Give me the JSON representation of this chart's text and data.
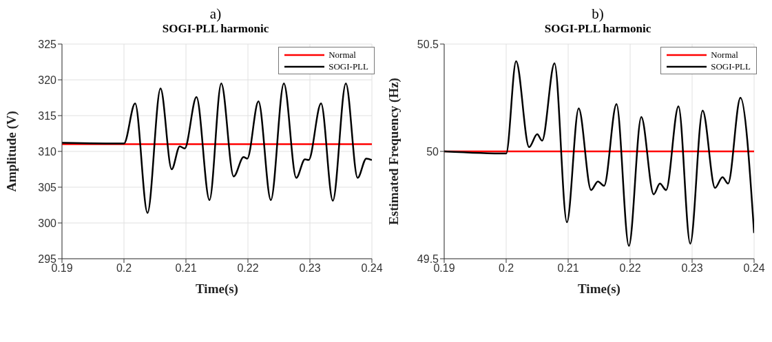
{
  "chart_data": [
    {
      "type": "line",
      "title": "SOGI-PLL harmonic",
      "annotations": [
        "a)"
      ],
      "xlabel": "Time(s)",
      "ylabel": "Amplitude (V)",
      "xlim": [
        0.19,
        0.24
      ],
      "xticks": [
        0.19,
        0.2,
        0.21,
        0.22,
        0.23,
        0.24
      ],
      "ylim": [
        295,
        325
      ],
      "yticks": [
        295,
        300,
        305,
        310,
        315,
        320,
        325
      ],
      "grid": true,
      "legend": "top right",
      "line_style": "solid",
      "series": [
        {
          "name": "Normal",
          "color": "#ff0000",
          "x": [
            0.19,
            0.24
          ],
          "values": [
            311,
            311
          ]
        },
        {
          "name": "SOGI-PLL",
          "color": "#000000",
          "x": [
            0.19,
            0.2,
            0.2018,
            0.2038,
            0.2059,
            0.2077,
            0.209,
            0.2098,
            0.2117,
            0.2138,
            0.2157,
            0.2177,
            0.2193,
            0.2199,
            0.2217,
            0.2237,
            0.2258,
            0.2278,
            0.2292,
            0.2298,
            0.2318,
            0.2337,
            0.2358,
            0.2377,
            0.2391,
            0.24
          ],
          "values": [
            311.2,
            311.1,
            316.7,
            301.4,
            318.8,
            307.5,
            310.7,
            310.4,
            317.6,
            303.2,
            319.5,
            306.5,
            309.2,
            309.0,
            317.0,
            303.2,
            319.5,
            306.3,
            308.9,
            308.8,
            316.7,
            303.1,
            319.5,
            306.3,
            309.0,
            308.8
          ]
        }
      ]
    },
    {
      "type": "line",
      "title": "SOGI-PLL harmonic",
      "annotations": [
        "b)"
      ],
      "xlabel": "Time(s)",
      "ylabel": "Estimated Frequency (Hz)",
      "xlim": [
        0.19,
        0.24
      ],
      "xticks": [
        0.19,
        0.2,
        0.21,
        0.22,
        0.23,
        0.24
      ],
      "ylim": [
        49.5,
        50.5
      ],
      "yticks": [
        49.5,
        50,
        50.5
      ],
      "grid": true,
      "legend": "top right",
      "line_style": "solid",
      "series": [
        {
          "name": "Normal",
          "color": "#ff0000",
          "x": [
            0.19,
            0.24
          ],
          "values": [
            50,
            50
          ]
        },
        {
          "name": "SOGI-PLL",
          "color": "#000000",
          "x": [
            0.19,
            0.2,
            0.2016,
            0.2037,
            0.205,
            0.2058,
            0.2078,
            0.2098,
            0.2117,
            0.2137,
            0.2148,
            0.2158,
            0.2178,
            0.2198,
            0.2218,
            0.2238,
            0.2248,
            0.2258,
            0.2278,
            0.2297,
            0.2317,
            0.2337,
            0.2349,
            0.2358,
            0.2378,
            0.24
          ],
          "values": [
            50.0,
            49.99,
            50.42,
            50.02,
            50.08,
            50.05,
            50.41,
            49.67,
            50.2,
            49.82,
            49.86,
            49.84,
            50.22,
            49.56,
            50.16,
            49.8,
            49.85,
            49.82,
            50.21,
            49.57,
            50.19,
            49.83,
            49.88,
            49.85,
            50.25,
            49.62
          ]
        }
      ]
    }
  ]
}
